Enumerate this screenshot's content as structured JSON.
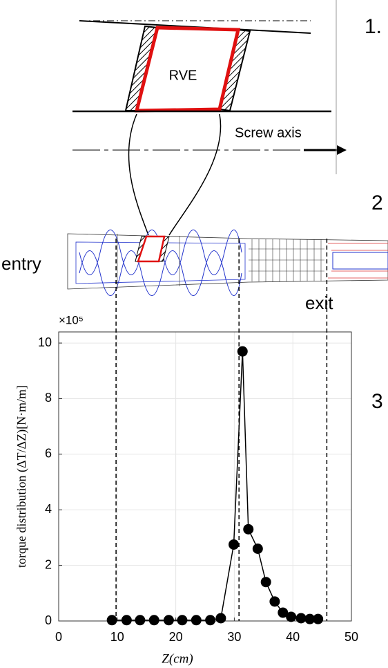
{
  "diagram": {
    "step_1": "1.",
    "step_2": "2",
    "step_3": "3",
    "rve_label": "RVE",
    "axis_label": "Screw axis",
    "entry_label": "entry",
    "exit_label": "exit"
  },
  "chart_data": {
    "type": "line",
    "x_label": "Z(cm)",
    "y_label": "torque distribution (ΔT/ΔZ)[N·m/m]",
    "y_multiplier": "×10⁵",
    "x": [
      9.1,
      11.6,
      13.9,
      16.3,
      18.8,
      21.1,
      23.5,
      25.9,
      27.7,
      29.9,
      31.4,
      32.4,
      34.0,
      35.4,
      36.9,
      38.3,
      39.7,
      41.4,
      42.9,
      44.3
    ],
    "series": [
      {
        "color": "#000000",
        "values": [
          0.03,
          0.03,
          0.03,
          0.03,
          0.03,
          0.03,
          0.03,
          0.03,
          0.1,
          2.75,
          9.7,
          3.3,
          2.6,
          1.4,
          0.7,
          0.3,
          0.15,
          0.1,
          0.07,
          0.07
        ]
      }
    ],
    "reference_lines": [
      9.8,
      30.8,
      45.8
    ],
    "xlim": [
      0,
      50
    ],
    "xticks": [
      0,
      10,
      20,
      30,
      40,
      50
    ],
    "ylim": [
      0,
      10.4
    ],
    "yticks": [
      0,
      2,
      4,
      6,
      8,
      10
    ],
    "grid": true
  }
}
